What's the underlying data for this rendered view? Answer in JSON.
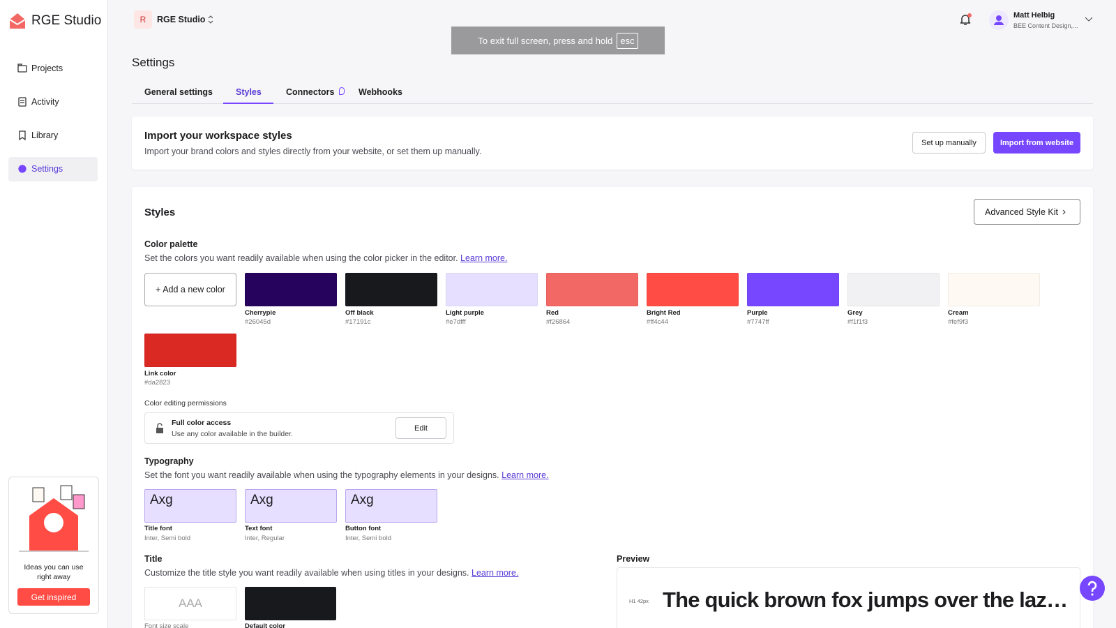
{
  "brand": "RGE Studio",
  "nav": [
    "Projects",
    "Activity",
    "Library",
    "Settings"
  ],
  "promo": {
    "text": "Ideas you can use right away",
    "button": "Get inspired"
  },
  "workspace": {
    "initial": "R",
    "name": "RGE Studio"
  },
  "toast": {
    "text": "To exit full screen, press and hold",
    "key": "esc"
  },
  "user": {
    "name": "Matt Helbig",
    "org": "BEE Content Design,..."
  },
  "page_title": "Settings",
  "tabs": [
    "General settings",
    "Styles",
    "Connectors",
    "Webhooks"
  ],
  "import": {
    "title": "Import your workspace styles",
    "description": "Import your brand colors and styles directly from your website, or set them up manually.",
    "buttons": [
      "Set up manually",
      "Import from website"
    ]
  },
  "styles": {
    "title": "Styles",
    "kit_button": "Advanced Style Kit",
    "palette": {
      "title": "Color palette",
      "description": "Set the colors you want readily available when using the color picker in the editor.",
      "link": "Learn more.",
      "add": "+ Add a new color",
      "colors": [
        {
          "name": "Cherrypie",
          "hex": "#26045d"
        },
        {
          "name": "Off black",
          "hex": "#17191c"
        },
        {
          "name": "Light purple",
          "hex": "#e7dfff"
        },
        {
          "name": "Red",
          "hex": "#f26864"
        },
        {
          "name": "Bright Red",
          "hex": "#ff4c44"
        },
        {
          "name": "Purple",
          "hex": "#7747ff"
        },
        {
          "name": "Grey",
          "hex": "#f1f1f3"
        },
        {
          "name": "Cream",
          "hex": "#fef9f3"
        },
        {
          "name": "Link color",
          "hex": "#da2823"
        }
      ]
    },
    "permissions": {
      "label": "Color editing permissions",
      "title": "Full color access",
      "description": "Use any color available in the builder.",
      "button": "Edit"
    },
    "typography": {
      "title": "Typography",
      "description": "Set the font you want readily available when using the typography elements in your designs.",
      "link": "Learn more.",
      "fonts": [
        {
          "sample": "Axg",
          "name": "Title font",
          "font": "Inter, Semi bold"
        },
        {
          "sample": "Axg",
          "name": "Text font",
          "font": "Inter, Regular"
        },
        {
          "sample": "Axg",
          "name": "Button font",
          "font": "Inter, Semi bold"
        }
      ]
    },
    "title_section": {
      "title": "Title",
      "description": "Customize the title style you want readily available when using titles in your designs.",
      "link": "Learn more.",
      "scale_sample": "AAA",
      "cards": [
        "Font size scale",
        "Default color"
      ]
    },
    "preview": {
      "label": "Preview",
      "tag": "H1 42px",
      "text": "The quick brown fox jumps over the laz…"
    }
  }
}
